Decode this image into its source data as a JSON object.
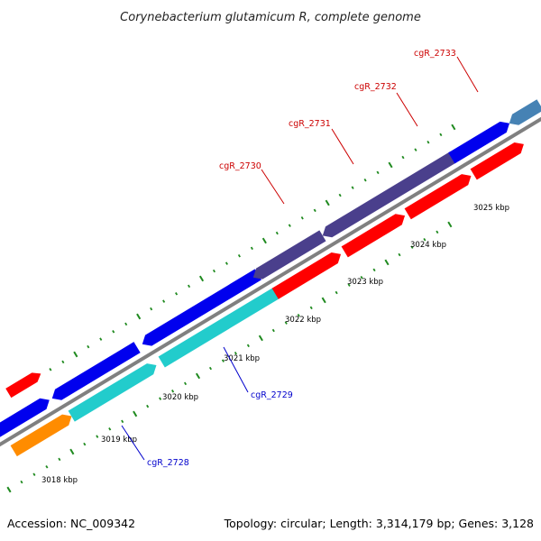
{
  "title": "Corynebacterium glutamicum R, complete genome",
  "footer": {
    "accession": "Accession: NC_009342",
    "topology": "Topology: circular; Length: 3,314,179 bp; Genes: 3,128"
  },
  "colors": {
    "backbone": "#808080",
    "tick_outer": "#1f8a1f",
    "gene_blue": "#0000ee",
    "gene_purple": "#4a3f8c",
    "gene_red": "#ff0000",
    "gene_cyan": "#22cccc",
    "gene_orange": "#ff8c00",
    "gene_steel": "#4682b4",
    "label_red": "#cc0000",
    "label_blue": "#0000cc"
  },
  "kbp_labels": [
    "3018 kbp",
    "3019 kbp",
    "3020 kbp",
    "3021 kbp",
    "3022 kbp",
    "3023 kbp",
    "3024 kbp",
    "3025 kbp"
  ],
  "gene_labels": [
    {
      "name": "cgR_2728",
      "color": "label_blue"
    },
    {
      "name": "cgR_2729",
      "color": "label_blue"
    },
    {
      "name": "cgR_2730",
      "color": "label_red"
    },
    {
      "name": "cgR_2731",
      "color": "label_red"
    },
    {
      "name": "cgR_2732",
      "color": "label_red"
    },
    {
      "name": "cgR_2733",
      "color": "label_red"
    }
  ]
}
